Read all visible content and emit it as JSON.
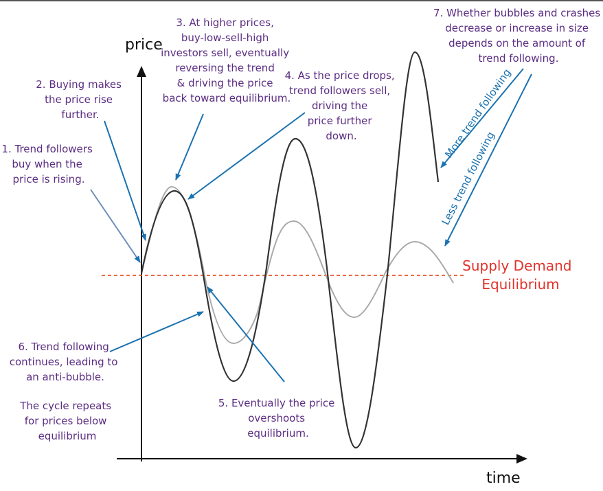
{
  "colors": {
    "axis": "#111111",
    "text": "#5b2d82",
    "arrow": "#1a72b0",
    "equilibrium": "#e8572a",
    "equilibrium_text": "#e0322a",
    "strong_curve": "#333333",
    "weak_curve": "#aaaaaa"
  },
  "axes": {
    "y_label": "price",
    "x_label": "time"
  },
  "equilibrium": {
    "line1": "Supply Demand",
    "line2": "Equilibrium"
  },
  "annotations": {
    "note1": [
      "1. Trend followers",
      "buy when the",
      "price is rising."
    ],
    "note2": [
      "2. Buying makes",
      "the price rise",
      "further."
    ],
    "note3": [
      "3. At higher prices,",
      "buy-low-sell-high",
      "investors sell, eventually",
      "reversing the trend",
      "& driving  the price",
      "back toward equilibrium."
    ],
    "note4": [
      "4. As the price drops,",
      "trend followers sell,",
      "driving the",
      "price further",
      "down."
    ],
    "note5": [
      "5. Eventually the price",
      "overshoots",
      "equilibrium."
    ],
    "note6": [
      "6. Trend following",
      "continues, leading to",
      "an anti-bubble."
    ],
    "note6b": [
      "The cycle repeats",
      "for prices below",
      "equilibrium"
    ],
    "note7": [
      "7. Whether bubbles and crashes",
      "decrease or increase in size",
      "depends on the amount of",
      "trend following."
    ]
  },
  "arrow_labels": {
    "more": "More trend following",
    "less": "Less trend following"
  }
}
